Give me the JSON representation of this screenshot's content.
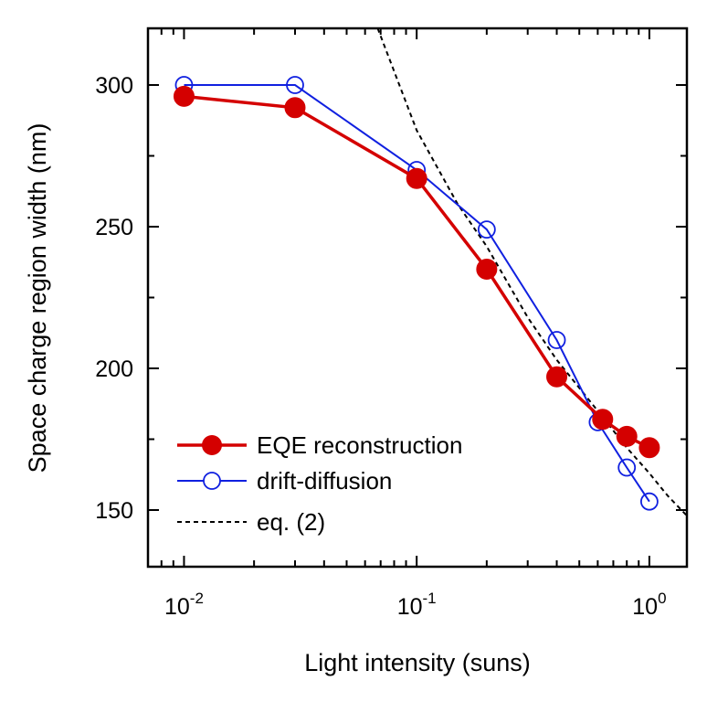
{
  "chart_data": {
    "type": "line",
    "xscale": "log",
    "xlabel": "Light intensity (suns)",
    "ylabel": "Space charge region width (nm)",
    "xlim": [
      0.007,
      1.45
    ],
    "ylim": [
      130,
      320
    ],
    "xticks": [
      {
        "value": 0.01,
        "base": "10",
        "exp": "-2"
      },
      {
        "value": 0.1,
        "base": "10",
        "exp": "-1"
      },
      {
        "value": 1,
        "base": "10",
        "exp": "0"
      }
    ],
    "yticks": [
      150,
      200,
      250,
      300
    ],
    "grid": false,
    "legend_position": "bottom-left",
    "series": [
      {
        "name": "EQE reconstruction",
        "color": "#d40000",
        "marker": "filled-circle",
        "x": [
          0.01,
          0.03,
          0.1,
          0.2,
          0.4,
          0.63,
          0.8,
          1.0
        ],
        "y": [
          296,
          292,
          267,
          235,
          197,
          182,
          176,
          172
        ]
      },
      {
        "name": "drift-diffusion",
        "color": "#1020e0",
        "marker": "open-circle",
        "x": [
          0.01,
          0.03,
          0.1,
          0.2,
          0.4,
          0.6,
          0.8,
          1.0
        ],
        "y": [
          300,
          300,
          270,
          249,
          210,
          181,
          165,
          153
        ]
      },
      {
        "name": "eq. (2)",
        "color": "#000000",
        "style": "dashed",
        "x": [
          0.068,
          0.1,
          0.15,
          0.2,
          0.3,
          0.4,
          0.6,
          0.8,
          1.0,
          1.2,
          1.45
        ],
        "y": [
          320,
          284,
          258,
          243,
          218,
          203,
          185,
          172,
          163,
          155,
          148
        ]
      }
    ]
  }
}
